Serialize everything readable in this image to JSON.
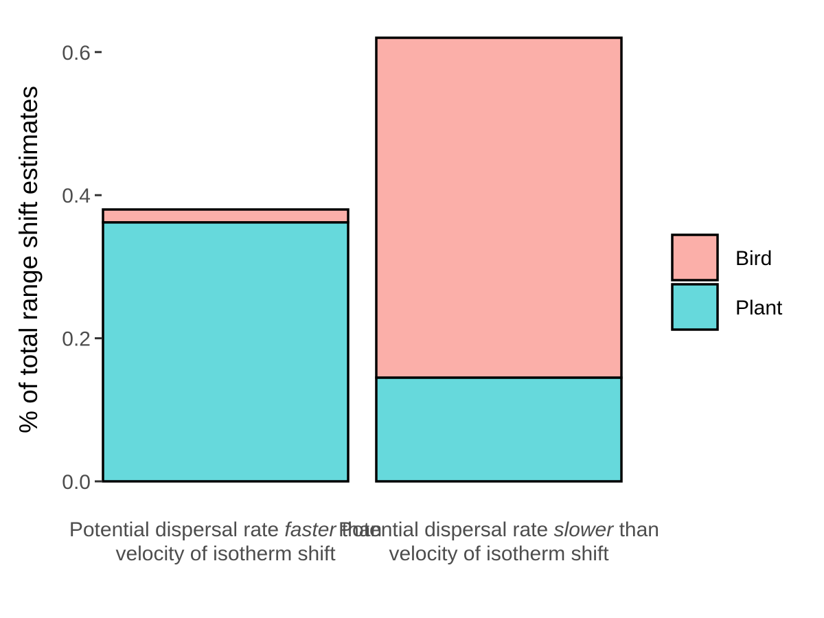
{
  "chart_data": {
    "type": "bar",
    "stacked": true,
    "categories": [
      {
        "line1_before": "Potential dispersal rate ",
        "line1_em": "faster",
        "line1_after": " than",
        "line2": "velocity of isotherm shift"
      },
      {
        "line1_before": "Potential dispersal rate ",
        "line1_em": "slower",
        "line1_after": " than",
        "line2": "velocity of isotherm shift"
      }
    ],
    "series": [
      {
        "name": "Plant",
        "color": "#66d9dc",
        "values": [
          0.362,
          0.145
        ]
      },
      {
        "name": "Bird",
        "color": "#fbafa9",
        "values": [
          0.018,
          0.475
        ]
      }
    ],
    "legend_order": [
      "Bird",
      "Plant"
    ],
    "ylabel": "% of total range shift estimates",
    "xlabel": "",
    "ylim": [
      0,
      0.62
    ],
    "yticks": [
      "0.0",
      "0.2",
      "0.4",
      "0.6"
    ],
    "ytick_values": [
      0,
      0.2,
      0.4,
      0.6
    ],
    "grid": false,
    "legend_position": "right"
  }
}
